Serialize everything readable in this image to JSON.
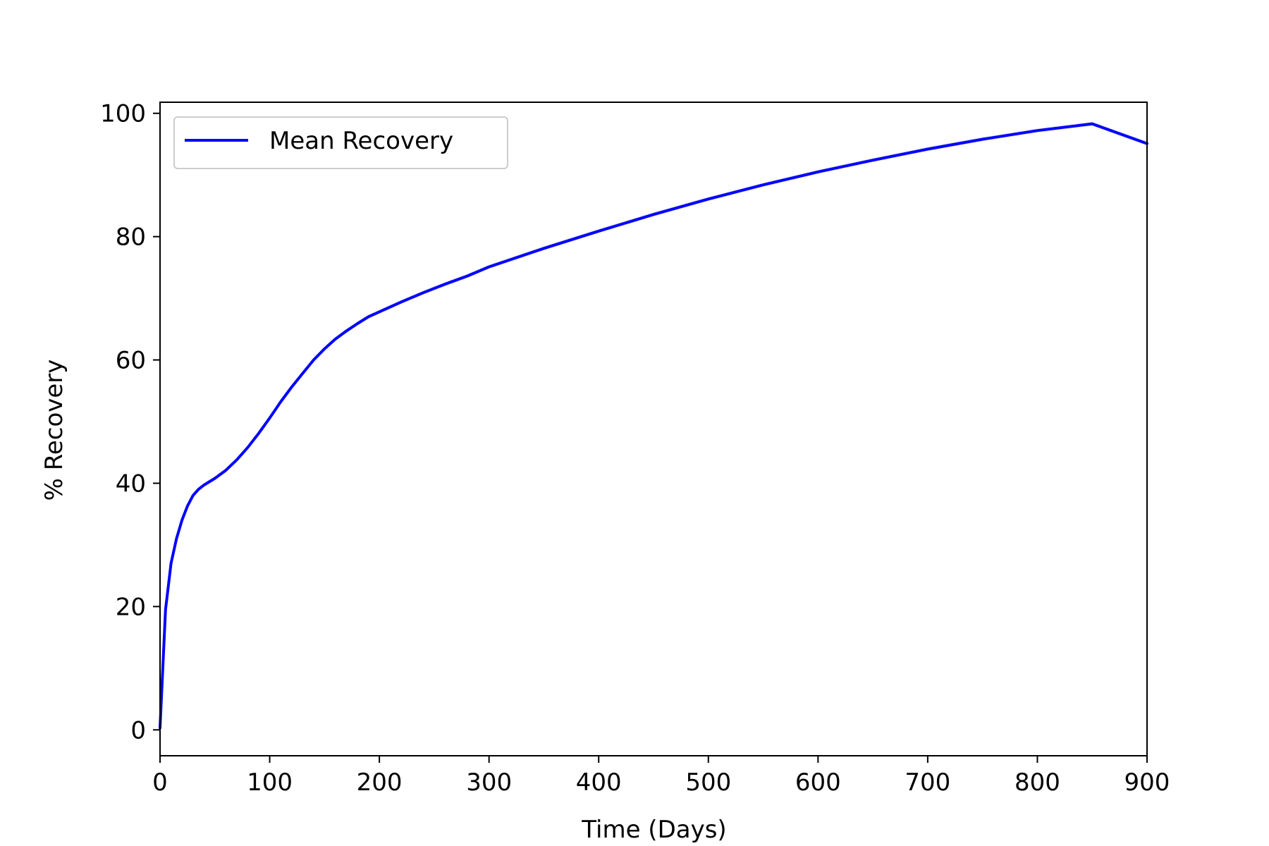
{
  "chart_data": {
    "type": "line",
    "title": "",
    "xlabel": "Time (Days)",
    "ylabel": "% Recovery",
    "xlim": [
      0,
      900
    ],
    "ylim": [
      -4.2,
      101.8
    ],
    "xticks": [
      0,
      100,
      200,
      300,
      400,
      500,
      600,
      700,
      800,
      900
    ],
    "yticks": [
      0,
      20,
      40,
      60,
      80,
      100
    ],
    "grid": false,
    "legend": {
      "position": "upper-left",
      "entries": [
        "Mean Recovery"
      ]
    },
    "series": [
      {
        "name": "Mean Recovery",
        "color": "#0000ff",
        "band_color": "#d3d3d3",
        "x": [
          0,
          2,
          5,
          10,
          15,
          20,
          25,
          30,
          35,
          40,
          50,
          60,
          70,
          80,
          90,
          100,
          110,
          120,
          130,
          140,
          150,
          160,
          170,
          180,
          190,
          200,
          220,
          240,
          260,
          280,
          300,
          350,
          400,
          450,
          500,
          550,
          600,
          650,
          700,
          750,
          800,
          850,
          900
        ],
        "y": [
          0.3,
          8,
          19.5,
          27,
          31,
          34,
          36.3,
          38,
          39,
          39.7,
          40.8,
          42.1,
          43.8,
          45.8,
          48.1,
          50.6,
          53.2,
          55.6,
          57.8,
          60.0,
          61.8,
          63.4,
          64.7,
          65.9,
          67.0,
          67.8,
          69.4,
          70.9,
          72.3,
          73.6,
          75.1,
          78.1,
          80.9,
          83.6,
          86.1,
          88.4,
          90.5,
          92.4,
          94.2,
          95.8,
          97.2,
          98.3,
          95.1
        ]
      }
    ]
  }
}
